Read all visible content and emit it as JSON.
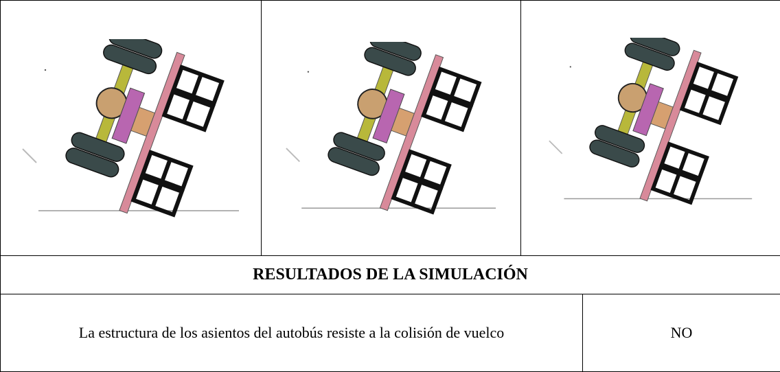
{
  "table": {
    "heading": "RESULTADOS DE LA SIMULACIÓN",
    "rows": [
      [
        "La estructura de los asientos del autobús resiste a la colisión de vuelco",
        "NO"
      ]
    ]
  }
}
